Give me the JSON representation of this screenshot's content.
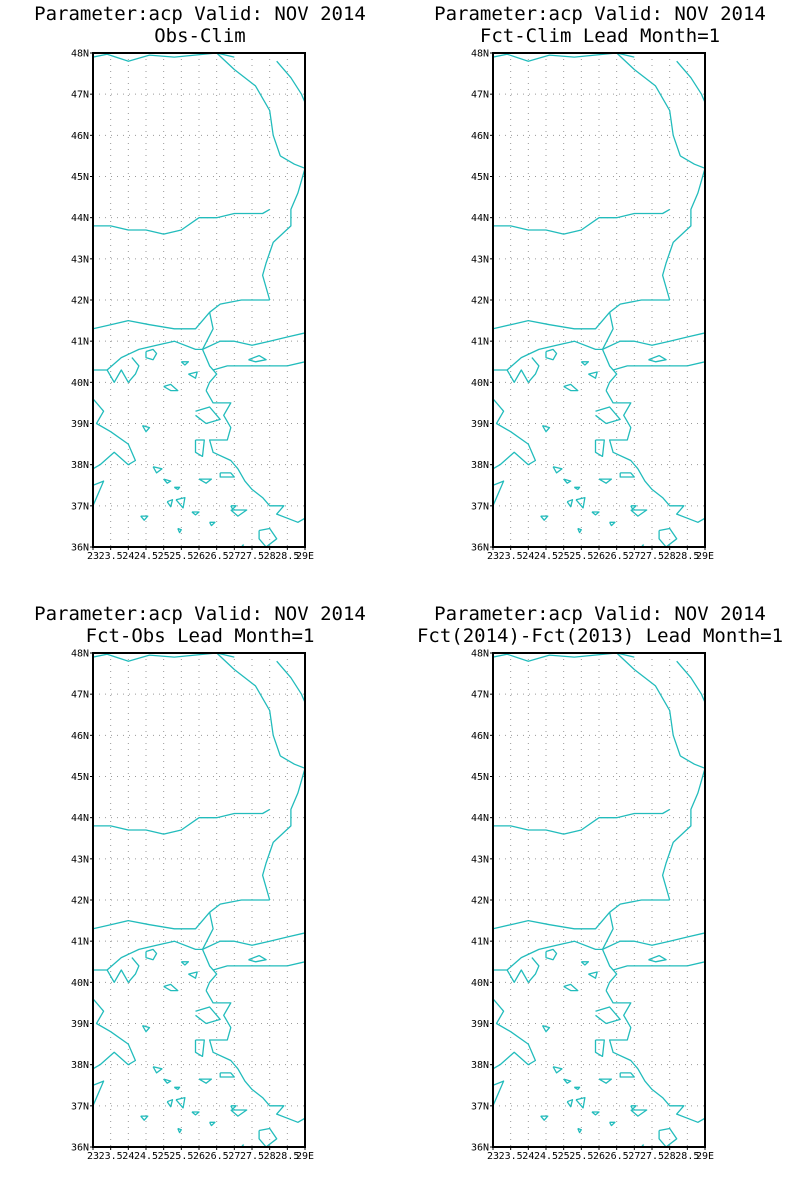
{
  "colors": {
    "coastline": "#22bcbc",
    "grid": "#9a9a9a",
    "frame": "#000000"
  },
  "axes": {
    "lon_range": [
      23,
      29
    ],
    "lat_range": [
      36,
      48
    ],
    "lon_ticks": [
      "23",
      "23.5",
      "24",
      "24.5",
      "25",
      "25.5",
      "26",
      "26.5",
      "27",
      "27.5",
      "28",
      "28.5",
      "29E"
    ],
    "lat_ticks": [
      "36N",
      "37N",
      "38N",
      "39N",
      "40N",
      "41N",
      "42N",
      "43N",
      "44N",
      "45N",
      "46N",
      "47N",
      "48N"
    ],
    "grid": true,
    "grid_lon_step": 0.5,
    "grid_lat_step": 1
  },
  "panels": [
    {
      "title_line1": "Parameter:acp Valid: NOV 2014",
      "title_line2": "Obs-Clim"
    },
    {
      "title_line1": "Parameter:acp Valid: NOV 2014",
      "title_line2": "Fct-Clim Lead Month=1"
    },
    {
      "title_line1": "Parameter:acp Valid: NOV 2014",
      "title_line2": "Fct-Obs Lead Month=1"
    },
    {
      "title_line1": "Parameter:acp Valid: NOV 2014",
      "title_line2": "Fct(2014)-Fct(2013) Lead Month=1"
    }
  ],
  "coastlines": [
    {
      "name": "northern-border",
      "points": [
        [
          23.0,
          47.9
        ],
        [
          23.4,
          47.97
        ],
        [
          24.0,
          47.8
        ],
        [
          24.6,
          47.95
        ],
        [
          25.3,
          47.9
        ],
        [
          26.5,
          48.0
        ],
        [
          27.0,
          47.9
        ]
      ]
    },
    {
      "name": "prut-river",
      "points": [
        [
          26.5,
          48.0
        ],
        [
          27.0,
          47.6
        ],
        [
          27.6,
          47.2
        ],
        [
          28.0,
          46.6
        ],
        [
          28.1,
          46.0
        ],
        [
          28.3,
          45.5
        ]
      ]
    },
    {
      "name": "danube-delta-border",
      "points": [
        [
          28.3,
          45.5
        ],
        [
          28.7,
          45.3
        ],
        [
          29.0,
          45.2
        ]
      ]
    },
    {
      "name": "dniester-river",
      "points": [
        [
          28.2,
          47.8
        ],
        [
          28.6,
          47.4
        ],
        [
          28.9,
          47.0
        ],
        [
          29.0,
          46.8
        ]
      ]
    },
    {
      "name": "danube-lower",
      "points": [
        [
          27.5,
          44.1
        ],
        [
          27.8,
          44.1
        ],
        [
          28.0,
          44.2
        ]
      ]
    },
    {
      "name": "black-sea-coast-north",
      "points": [
        [
          29.0,
          45.2
        ],
        [
          28.9,
          44.9
        ],
        [
          28.8,
          44.6
        ],
        [
          28.6,
          44.2
        ],
        [
          28.6,
          43.8
        ],
        [
          28.1,
          43.4
        ],
        [
          27.9,
          42.9
        ],
        [
          27.8,
          42.6
        ],
        [
          28.0,
          42.0
        ]
      ]
    },
    {
      "name": "danube-romania-bulgaria",
      "points": [
        [
          23.0,
          43.8
        ],
        [
          23.5,
          43.8
        ],
        [
          24.0,
          43.7
        ],
        [
          24.5,
          43.7
        ],
        [
          25.0,
          43.6
        ],
        [
          25.5,
          43.7
        ],
        [
          26.0,
          44.0
        ],
        [
          26.5,
          44.0
        ],
        [
          27.0,
          44.1
        ],
        [
          27.5,
          44.1
        ]
      ]
    },
    {
      "name": "bulgaria-greece-border",
      "points": [
        [
          23.0,
          41.3
        ],
        [
          23.5,
          41.4
        ],
        [
          24.0,
          41.5
        ],
        [
          24.6,
          41.4
        ],
        [
          25.3,
          41.3
        ],
        [
          25.9,
          41.3
        ],
        [
          26.3,
          41.7
        ],
        [
          26.6,
          41.9
        ],
        [
          27.2,
          42.0
        ],
        [
          28.0,
          42.0
        ]
      ]
    },
    {
      "name": "turkey-greece-border",
      "points": [
        [
          26.3,
          41.7
        ],
        [
          26.4,
          41.3
        ],
        [
          26.1,
          40.8
        ]
      ]
    },
    {
      "name": "marmara-north",
      "points": [
        [
          26.1,
          40.8
        ],
        [
          26.6,
          41.0
        ],
        [
          27.0,
          41.0
        ],
        [
          27.5,
          40.9
        ],
        [
          28.0,
          41.0
        ],
        [
          28.5,
          41.1
        ],
        [
          29.0,
          41.2
        ]
      ]
    },
    {
      "name": "gallipoli",
      "points": [
        [
          26.1,
          40.8
        ],
        [
          26.2,
          40.6
        ],
        [
          26.3,
          40.4
        ],
        [
          26.5,
          40.2
        ],
        [
          26.3,
          40.0
        ],
        [
          26.2,
          39.8
        ]
      ]
    },
    {
      "name": "marmara-south",
      "points": [
        [
          26.4,
          40.3
        ],
        [
          26.8,
          40.4
        ],
        [
          27.2,
          40.4
        ],
        [
          27.6,
          40.4
        ],
        [
          28.0,
          40.4
        ],
        [
          28.5,
          40.4
        ],
        [
          29.0,
          40.5
        ]
      ]
    },
    {
      "name": "marmara-island",
      "points": [
        [
          27.4,
          40.55
        ],
        [
          27.7,
          40.65
        ],
        [
          27.9,
          40.55
        ],
        [
          27.6,
          40.5
        ],
        [
          27.4,
          40.55
        ]
      ]
    },
    {
      "name": "anatolia-aegean-coast",
      "points": [
        [
          26.2,
          39.8
        ],
        [
          26.4,
          39.5
        ],
        [
          26.9,
          39.5
        ],
        [
          26.7,
          39.2
        ],
        [
          26.9,
          38.9
        ],
        [
          26.8,
          38.6
        ],
        [
          26.3,
          38.6
        ],
        [
          26.4,
          38.3
        ],
        [
          26.9,
          38.1
        ],
        [
          27.1,
          37.9
        ],
        [
          27.3,
          37.6
        ],
        [
          27.5,
          37.4
        ],
        [
          27.8,
          37.2
        ],
        [
          28.0,
          37.0
        ],
        [
          28.4,
          37.0
        ],
        [
          28.2,
          36.8
        ],
        [
          28.5,
          36.7
        ],
        [
          28.8,
          36.6
        ],
        [
          29.0,
          36.7
        ]
      ]
    },
    {
      "name": "northern-greece-coast",
      "points": [
        [
          23.0,
          40.3
        ],
        [
          23.4,
          40.3
        ],
        [
          23.8,
          40.6
        ],
        [
          24.3,
          40.8
        ],
        [
          24.8,
          40.9
        ],
        [
          25.3,
          41.0
        ],
        [
          25.9,
          40.8
        ],
        [
          26.1,
          40.8
        ]
      ]
    },
    {
      "name": "chalkidiki",
      "points": [
        [
          23.4,
          40.3
        ],
        [
          23.6,
          40.0
        ],
        [
          23.8,
          40.3
        ],
        [
          24.0,
          40.0
        ],
        [
          24.2,
          40.2
        ],
        [
          24.3,
          40.4
        ],
        [
          24.1,
          40.6
        ]
      ]
    },
    {
      "name": "thassos",
      "points": [
        [
          24.5,
          40.75
        ],
        [
          24.7,
          40.8
        ],
        [
          24.8,
          40.7
        ],
        [
          24.7,
          40.55
        ],
        [
          24.5,
          40.6
        ],
        [
          24.5,
          40.75
        ]
      ]
    },
    {
      "name": "samothrace",
      "points": [
        [
          25.5,
          40.5
        ],
        [
          25.7,
          40.5
        ],
        [
          25.6,
          40.42
        ],
        [
          25.5,
          40.5
        ]
      ]
    },
    {
      "name": "imbros",
      "points": [
        [
          25.7,
          40.2
        ],
        [
          25.95,
          40.25
        ],
        [
          25.9,
          40.1
        ],
        [
          25.7,
          40.2
        ]
      ]
    },
    {
      "name": "lemnos",
      "points": [
        [
          25.0,
          39.9
        ],
        [
          25.2,
          39.95
        ],
        [
          25.4,
          39.8
        ],
        [
          25.2,
          39.8
        ],
        [
          25.0,
          39.9
        ]
      ]
    },
    {
      "name": "greek-mainland-east",
      "points": [
        [
          23.0,
          39.6
        ],
        [
          23.3,
          39.3
        ],
        [
          23.1,
          39.0
        ],
        [
          23.5,
          38.8
        ],
        [
          24.0,
          38.5
        ],
        [
          24.2,
          38.1
        ],
        [
          24.0,
          38.0
        ],
        [
          23.6,
          38.3
        ],
        [
          23.2,
          38.0
        ],
        [
          23.0,
          37.9
        ]
      ]
    },
    {
      "name": "peloponnese-east",
      "points": [
        [
          23.0,
          37.5
        ],
        [
          23.3,
          37.6
        ],
        [
          23.1,
          37.2
        ],
        [
          23.0,
          37.0
        ]
      ]
    },
    {
      "name": "lesbos",
      "points": [
        [
          25.9,
          39.3
        ],
        [
          26.3,
          39.4
        ],
        [
          26.6,
          39.1
        ],
        [
          26.2,
          39.0
        ],
        [
          25.9,
          39.2
        ]
      ]
    },
    {
      "name": "chios",
      "points": [
        [
          25.9,
          38.6
        ],
        [
          26.15,
          38.6
        ],
        [
          26.1,
          38.2
        ],
        [
          25.9,
          38.3
        ],
        [
          25.9,
          38.6
        ]
      ]
    },
    {
      "name": "samos",
      "points": [
        [
          26.6,
          37.8
        ],
        [
          26.9,
          37.8
        ],
        [
          27.0,
          37.7
        ],
        [
          26.6,
          37.7
        ],
        [
          26.6,
          37.8
        ]
      ]
    },
    {
      "name": "ikaria",
      "points": [
        [
          26.0,
          37.65
        ],
        [
          26.35,
          37.65
        ],
        [
          26.2,
          37.55
        ],
        [
          26.0,
          37.65
        ]
      ]
    },
    {
      "name": "kos",
      "points": [
        [
          26.9,
          36.9
        ],
        [
          27.35,
          36.9
        ],
        [
          27.1,
          36.75
        ],
        [
          26.9,
          36.9
        ]
      ]
    },
    {
      "name": "rhodes",
      "points": [
        [
          27.7,
          36.4
        ],
        [
          28.0,
          36.45
        ],
        [
          28.2,
          36.2
        ],
        [
          27.9,
          36.0
        ],
        [
          27.7,
          36.2
        ],
        [
          27.7,
          36.4
        ]
      ]
    },
    {
      "name": "skyros",
      "points": [
        [
          24.4,
          38.95
        ],
        [
          24.6,
          38.9
        ],
        [
          24.5,
          38.8
        ],
        [
          24.4,
          38.95
        ]
      ]
    },
    {
      "name": "andros",
      "points": [
        [
          24.7,
          37.95
        ],
        [
          24.95,
          37.9
        ],
        [
          24.8,
          37.8
        ],
        [
          24.7,
          37.95
        ]
      ]
    },
    {
      "name": "tinos",
      "points": [
        [
          25.0,
          37.65
        ],
        [
          25.2,
          37.6
        ],
        [
          25.1,
          37.55
        ],
        [
          25.0,
          37.65
        ]
      ]
    },
    {
      "name": "naxos",
      "points": [
        [
          25.35,
          37.15
        ],
        [
          25.6,
          37.2
        ],
        [
          25.55,
          36.95
        ],
        [
          25.35,
          37.15
        ]
      ]
    },
    {
      "name": "paros",
      "points": [
        [
          25.1,
          37.1
        ],
        [
          25.25,
          37.15
        ],
        [
          25.2,
          36.98
        ],
        [
          25.1,
          37.1
        ]
      ]
    },
    {
      "name": "mykonos",
      "points": [
        [
          25.3,
          37.45
        ],
        [
          25.45,
          37.45
        ],
        [
          25.4,
          37.4
        ],
        [
          25.3,
          37.45
        ]
      ]
    },
    {
      "name": "milos",
      "points": [
        [
          24.35,
          36.75
        ],
        [
          24.55,
          36.75
        ],
        [
          24.45,
          36.65
        ],
        [
          24.35,
          36.75
        ]
      ]
    },
    {
      "name": "santorini",
      "points": [
        [
          25.4,
          36.45
        ],
        [
          25.5,
          36.42
        ],
        [
          25.45,
          36.35
        ],
        [
          25.4,
          36.45
        ]
      ]
    },
    {
      "name": "amorgos",
      "points": [
        [
          25.8,
          36.85
        ],
        [
          26.0,
          36.85
        ],
        [
          25.9,
          36.78
        ],
        [
          25.8,
          36.85
        ]
      ]
    },
    {
      "name": "astypalaia",
      "points": [
        [
          26.3,
          36.6
        ],
        [
          26.45,
          36.6
        ],
        [
          26.35,
          36.52
        ],
        [
          26.3,
          36.6
        ]
      ]
    },
    {
      "name": "kalymnos",
      "points": [
        [
          26.9,
          37.0
        ],
        [
          27.05,
          37.0
        ],
        [
          26.95,
          36.92
        ],
        [
          26.9,
          37.0
        ]
      ]
    },
    {
      "name": "karpathos",
      "points": [
        [
          27.1,
          35.9
        ],
        [
          27.25,
          36.05
        ],
        [
          27.2,
          35.85
        ],
        [
          27.1,
          35.9
        ]
      ]
    }
  ]
}
